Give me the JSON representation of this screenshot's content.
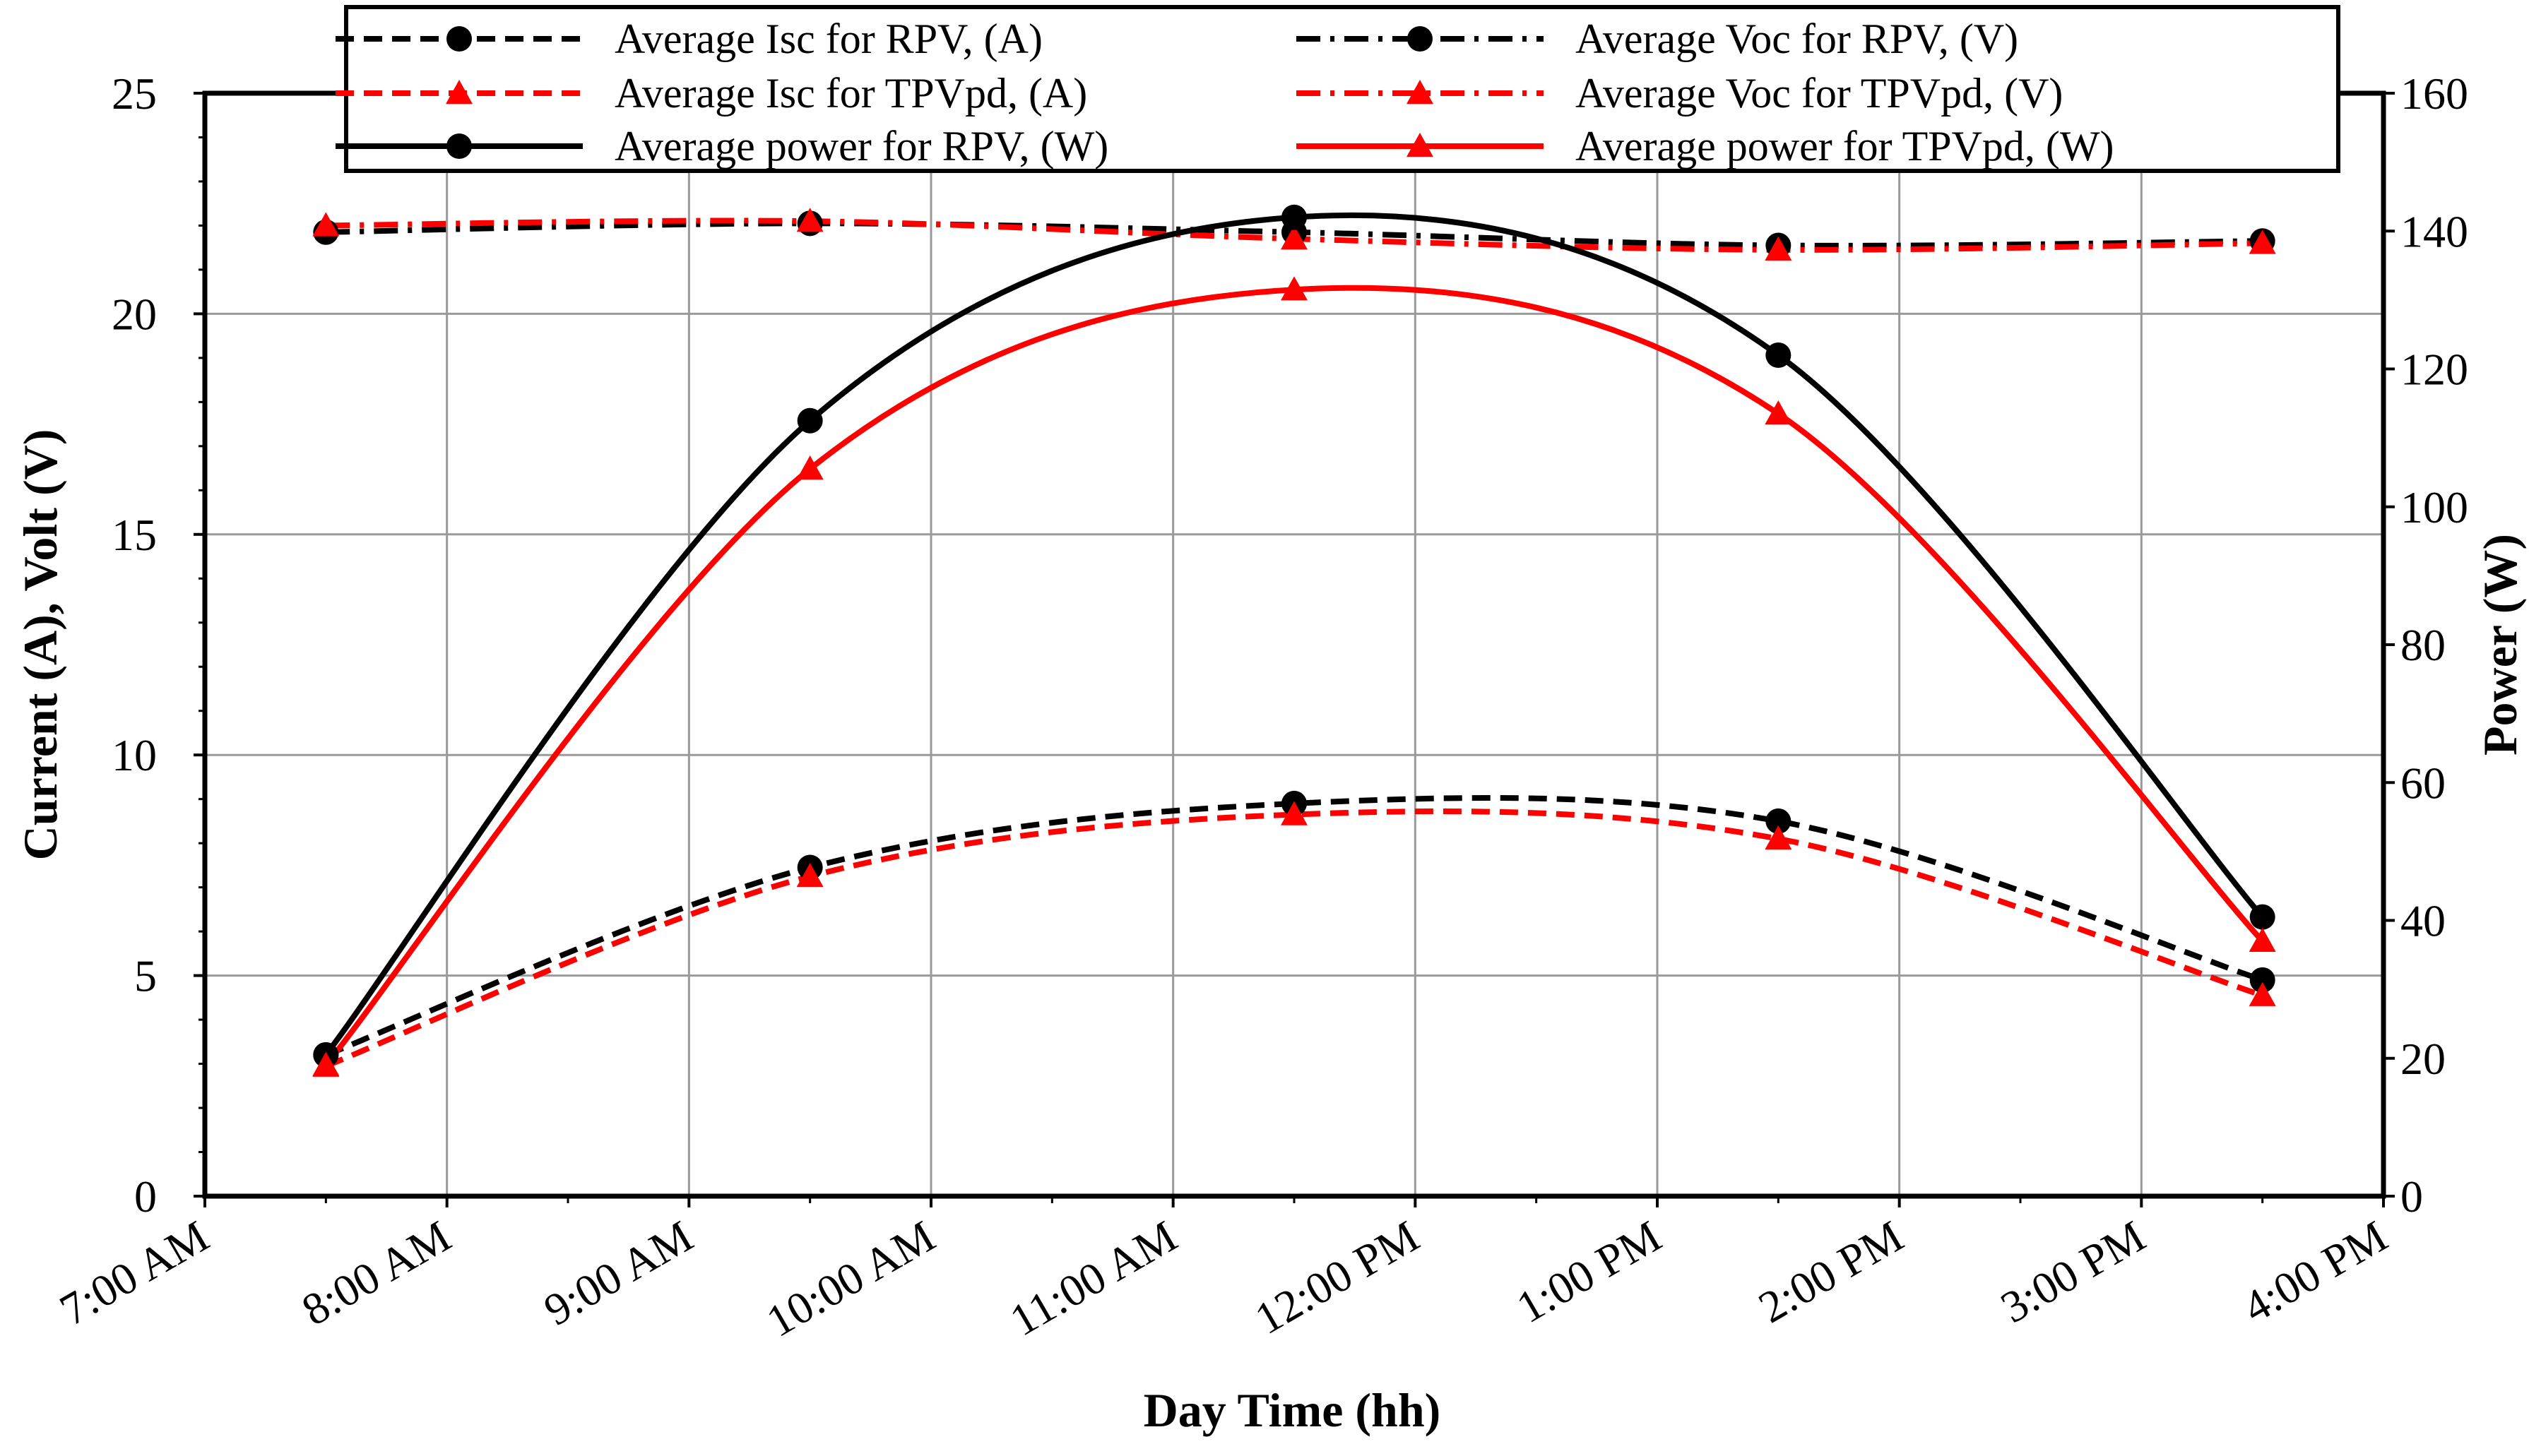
{
  "chart_data": {
    "type": "line",
    "title": "",
    "xlabel": "Day Time (hh)",
    "ylabel_left": "Current  (A), Volt (V)",
    "ylabel_right": "Power (W)",
    "x_range_hours": [
      7,
      16
    ],
    "x_tick_labels": [
      "7:00 AM",
      "8:00 AM",
      "9:00 AM",
      "10:00 AM",
      "11:00 AM",
      "12:00 PM",
      "1:00 PM",
      "2:00 PM",
      "3:00 PM",
      "4:00 PM"
    ],
    "y_left": {
      "min": 0,
      "max": 25,
      "ticks": [
        "0",
        "5",
        "10",
        "15",
        "20",
        "25"
      ]
    },
    "y_right": {
      "min": 0,
      "max": 160,
      "ticks": [
        "0",
        "20",
        "40",
        "60",
        "80",
        "100",
        "120",
        "140",
        "160"
      ]
    },
    "x_hours": [
      7.5,
      9.5,
      11.5,
      13.5,
      15.5
    ],
    "grid": true,
    "legend_position": "top",
    "series": [
      {
        "name": "Average Isc for RPV, (A)",
        "axis": "left",
        "color": "#000000",
        "dash": "short",
        "marker": "circle",
        "values": [
          3.2,
          7.45,
          8.9,
          8.5,
          4.9
        ]
      },
      {
        "name": "Average Voc for RPV,  (V)",
        "axis": "left",
        "color": "#000000",
        "dash": "dashdot",
        "marker": "circle",
        "values": [
          21.85,
          22.05,
          21.85,
          21.55,
          21.65
        ]
      },
      {
        "name": "Average Isc for TPVpd, (A)",
        "axis": "left",
        "color": "#ff0000",
        "dash": "short",
        "marker": "triangle",
        "values": [
          2.95,
          7.25,
          8.65,
          8.1,
          4.55
        ]
      },
      {
        "name": "Average Voc for TPVpd, (V)",
        "axis": "left",
        "color": "#ff0000",
        "dash": "dashdot",
        "marker": "triangle",
        "values": [
          22.0,
          22.1,
          21.7,
          21.45,
          21.6
        ]
      },
      {
        "name": "Average power for RPV, (W)",
        "axis": "right",
        "color": "#000000",
        "dash": "solid",
        "marker": "circle",
        "values": [
          20.5,
          112.5,
          142.0,
          122.0,
          40.5
        ]
      },
      {
        "name": "Average power for TPVpd, (W)",
        "axis": "right",
        "color": "#ff0000",
        "dash": "solid",
        "marker": "triangle",
        "values": [
          19.0,
          105.5,
          131.5,
          113.5,
          37.0
        ]
      }
    ],
    "legend_order": [
      0,
      1,
      2,
      3,
      4,
      5
    ]
  }
}
